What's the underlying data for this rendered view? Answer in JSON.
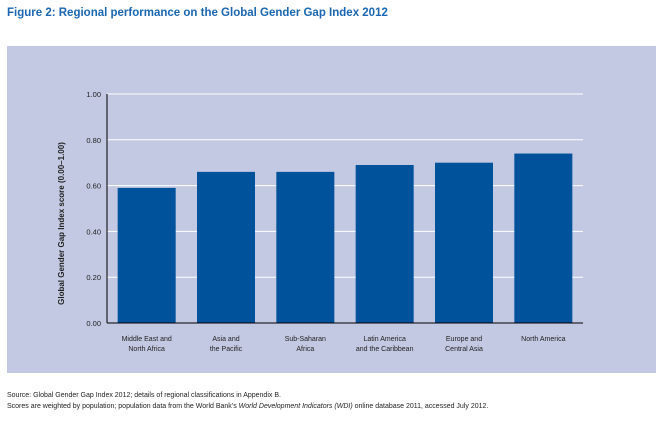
{
  "figure_title": "Figure 2: Regional performance on the Global Gender Gap Index 2012",
  "source_note": {
    "line1": "Source: Global Gender Gap Index 2012; details of regional classifications in Appendix B.",
    "line2_before": "Scores are weighted by population; population data from the World Bank’s ",
    "line2_italic": "World Development Indicators (WDI)",
    "line2_after": " online database 2011, accessed July 2012."
  },
  "colors": {
    "bar": "#00529b",
    "panel": "#c3c9e2",
    "title": "#1a66b0",
    "grid": "#ffffff"
  },
  "chart_data": {
    "type": "bar",
    "title": "",
    "ylabel": "Global Gender Gap Index score (0.00–1.00)",
    "xlabel": "",
    "ylim": [
      0,
      1
    ],
    "yticks": [
      "0.00",
      "0.20",
      "0.40",
      "0.60",
      "0.80",
      "1.00"
    ],
    "grid": true,
    "categories": [
      [
        "Middle East and",
        "North Africa"
      ],
      [
        "Asia and",
        "the Pacific"
      ],
      [
        "Sub-Saharan",
        "Africa"
      ],
      [
        "Latin America",
        "and the Caribbean"
      ],
      [
        "Europe and",
        "Central Asia"
      ],
      [
        "North America"
      ]
    ],
    "values": [
      0.59,
      0.66,
      0.66,
      0.69,
      0.7,
      0.74
    ]
  }
}
